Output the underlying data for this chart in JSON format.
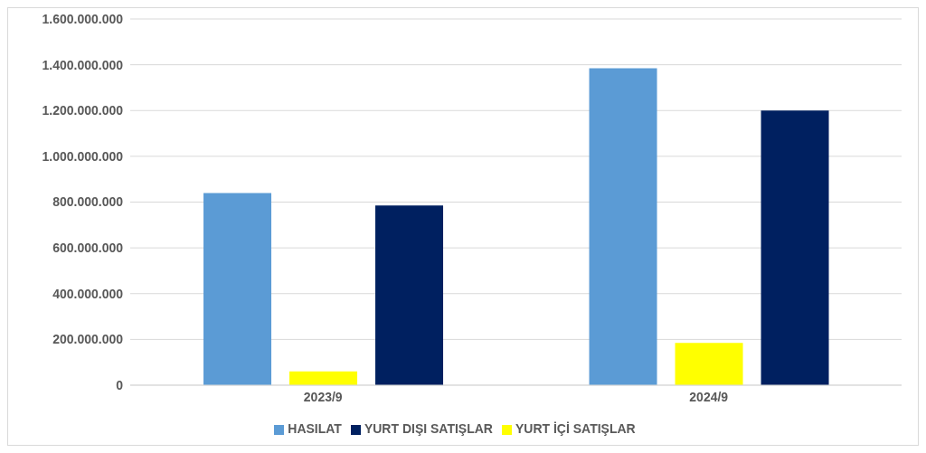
{
  "chart_data": {
    "type": "bar",
    "categories": [
      "2023/9",
      "2024/9"
    ],
    "series": [
      {
        "name": "HASILAT",
        "color": "#5b9bd5",
        "values": [
          840000000,
          1385000000
        ]
      },
      {
        "name": "YURT İÇİ SATIŞLAR",
        "color": "#ffff00",
        "values": [
          60000000,
          185000000
        ]
      },
      {
        "name": "YURT DIŞI SATIŞLAR",
        "color": "#002060",
        "values": [
          785000000,
          1200000000
        ]
      }
    ],
    "ylim": [
      0,
      1600000000
    ],
    "yticks": [
      {
        "value": 0,
        "label": "0"
      },
      {
        "value": 200000000,
        "label": "200.000.000"
      },
      {
        "value": 400000000,
        "label": "400.000.000"
      },
      {
        "value": 600000000,
        "label": "600.000.000"
      },
      {
        "value": 800000000,
        "label": "800.000.000"
      },
      {
        "value": 1000000000,
        "label": "1.000.000.000"
      },
      {
        "value": 1200000000,
        "label": "1.200.000.000"
      },
      {
        "value": 1400000000,
        "label": "1.400.000.000"
      },
      {
        "value": 1600000000,
        "label": "1.600.000.000"
      }
    ],
    "grid": "y",
    "legend": "bottom"
  }
}
